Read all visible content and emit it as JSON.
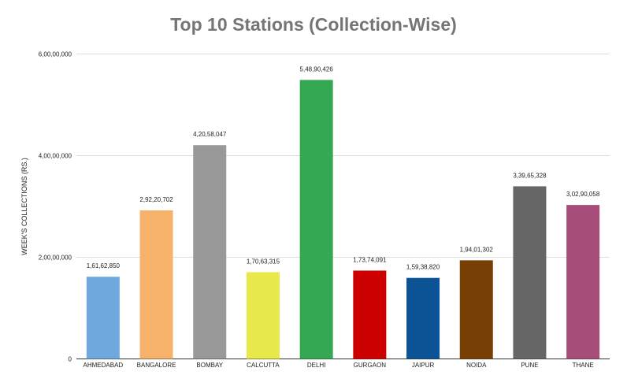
{
  "chart_data": {
    "type": "bar",
    "title": "Top 10 Stations (Collection-Wise)",
    "xlabel": "",
    "ylabel": "WEEK'S COLLECTIONS (RS.)",
    "ylim": [
      0,
      60000000
    ],
    "yticks": [
      {
        "value": 0,
        "label": "0"
      },
      {
        "value": 20000000,
        "label": "2,00,00,000"
      },
      {
        "value": 40000000,
        "label": "4,00,00,000"
      },
      {
        "value": 60000000,
        "label": "6,00,00,000"
      }
    ],
    "categories": [
      "AHMEDABAD",
      "BANGALORE",
      "BOMBAY",
      "CALCUTTA",
      "DELHI",
      "GURGAON",
      "JAIPUR",
      "NOIDA",
      "PUNE",
      "THANE"
    ],
    "values": [
      16162850,
      29220702,
      42058047,
      17063315,
      54890426,
      17374091,
      15938820,
      19401302,
      33965328,
      30290058
    ],
    "data_labels": [
      "1,61,62,850",
      "2,92,20,702",
      "4,20,58,047",
      "1,70,63,315",
      "5,48,90,426",
      "1,73,74,091",
      "1,59,38,820",
      "1,94,01,302",
      "3,39,65,328",
      "3,02,90,058"
    ],
    "colors": [
      "#6fa8dc",
      "#f6b26b",
      "#999999",
      "#e8e84a",
      "#34a853",
      "#cc0000",
      "#0b5394",
      "#783f04",
      "#666666",
      "#a64d79"
    ],
    "grid": true,
    "legend": "none"
  }
}
